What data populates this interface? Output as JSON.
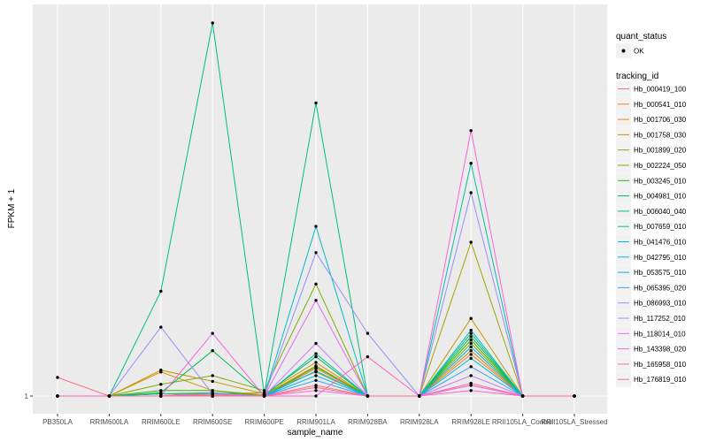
{
  "chart_data": {
    "type": "line",
    "xlabel": "sample_name",
    "ylabel": "FPKM + 1",
    "y_scale": "log",
    "y_ticks": [
      1
    ],
    "y_tick_labels": [
      "1"
    ],
    "ylim": [
      1,
      28
    ],
    "grid": true,
    "legend_position": "right",
    "categories": [
      "PB350LA",
      "RRIM600LA",
      "RRIM600LE",
      "RRIM600SE",
      "RRIM600PE",
      "RRIM901LA",
      "RRIM928BA",
      "RRIM928LA",
      "RRIM928LE",
      "RRII105LA_Control",
      "RRII105LA_Stressed"
    ],
    "quant_status_legend": {
      "title": "quant_status",
      "items": [
        "OK"
      ]
    },
    "series_legend_title": "tracking_id",
    "series": [
      {
        "name": "Hb_000419_100",
        "color": "#F8766D",
        "values": [
          1,
          1,
          1,
          1.01,
          1,
          1.1,
          1,
          1,
          1.1,
          1,
          1
        ]
      },
      {
        "name": "Hb_000541_010",
        "color": "#EA8331",
        "values": [
          1,
          1,
          1.02,
          1,
          1,
          1.28,
          1,
          1,
          1.45,
          1,
          1
        ]
      },
      {
        "name": "Hb_001706_030",
        "color": "#D89000",
        "values": [
          1,
          1,
          1.24,
          1.05,
          1.01,
          1.31,
          1,
          1,
          1.5,
          1,
          1
        ]
      },
      {
        "name": "Hb_001758_030",
        "color": "#C09B00",
        "values": [
          1,
          1,
          1.26,
          1.14,
          1.02,
          1.35,
          1,
          1,
          2.0,
          1,
          1
        ]
      },
      {
        "name": "Hb_001899_020",
        "color": "#A3A500",
        "values": [
          1,
          1,
          1.02,
          1.02,
          1.03,
          1.24,
          1,
          1,
          3.95,
          1,
          1
        ]
      },
      {
        "name": "Hb_002224_050",
        "color": "#7CAE00",
        "values": [
          1,
          1,
          1.11,
          1.2,
          1.05,
          2.72,
          1,
          1,
          1.6,
          1,
          1
        ]
      },
      {
        "name": "Hb_003245_010",
        "color": "#39B600",
        "values": [
          1,
          1,
          1.05,
          1.05,
          1,
          1.3,
          1,
          1,
          1.65,
          1,
          1
        ]
      },
      {
        "name": "Hb_004981_010",
        "color": "#00BB4E",
        "values": [
          1,
          1,
          1.03,
          1.5,
          1.01,
          1.42,
          1,
          1,
          1.7,
          1,
          1
        ]
      },
      {
        "name": "Hb_006040_040",
        "color": "#00BF7D",
        "values": [
          1,
          1,
          2.55,
          28,
          1.02,
          13.7,
          1,
          1,
          1.75,
          1,
          1
        ]
      },
      {
        "name": "Hb_007659_010",
        "color": "#00C1A3",
        "values": [
          1,
          1,
          1.02,
          1.03,
          1,
          1.46,
          1,
          1,
          8.0,
          1,
          1
        ]
      },
      {
        "name": "Hb_041476_010",
        "color": "#00BFC4",
        "values": [
          1,
          1,
          1,
          1.02,
          1,
          4.55,
          1,
          1,
          1.8,
          1,
          1
        ]
      },
      {
        "name": "Hb_042795_010",
        "color": "#00BAE0",
        "values": [
          1,
          1,
          1,
          1,
          1,
          1.2,
          1,
          1,
          1.4,
          1,
          1
        ]
      },
      {
        "name": "Hb_053575_010",
        "color": "#00B0F6",
        "values": [
          1,
          1,
          1,
          1,
          1,
          1.25,
          1,
          1,
          1.55,
          1,
          1
        ]
      },
      {
        "name": "Hb_065395_020",
        "color": "#35A2FF",
        "values": [
          1,
          1,
          1,
          1,
          1,
          1.15,
          1,
          1,
          1.3,
          1,
          1
        ]
      },
      {
        "name": "Hb_086993_010",
        "color": "#9590FF",
        "values": [
          1,
          1,
          1.85,
          1.02,
          1,
          3.6,
          1.75,
          1,
          6.15,
          1,
          1
        ]
      },
      {
        "name": "Hb_117252_010",
        "color": "#C77CFF",
        "values": [
          1,
          1,
          1,
          1,
          1,
          1.6,
          1,
          1,
          1.2,
          1,
          1
        ]
      },
      {
        "name": "Hb_118014_010",
        "color": "#E76BF3",
        "values": [
          1,
          1,
          1,
          1.02,
          1,
          2.35,
          1,
          1,
          1.1,
          1,
          1
        ]
      },
      {
        "name": "Hb_143398_020",
        "color": "#FA62DB",
        "values": [
          1,
          1,
          1,
          1.75,
          1,
          1.05,
          1,
          1,
          10.7,
          1,
          1
        ]
      },
      {
        "name": "Hb_165958_010",
        "color": "#FF62BC",
        "values": [
          1,
          1,
          1,
          1,
          1,
          1,
          1.42,
          1,
          1.05,
          1,
          1
        ]
      },
      {
        "name": "Hb_176819_010",
        "color": "#FF6C91",
        "values": [
          1.18,
          1,
          1,
          1,
          1,
          1.08,
          1,
          1,
          1.12,
          1,
          1
        ]
      }
    ]
  }
}
